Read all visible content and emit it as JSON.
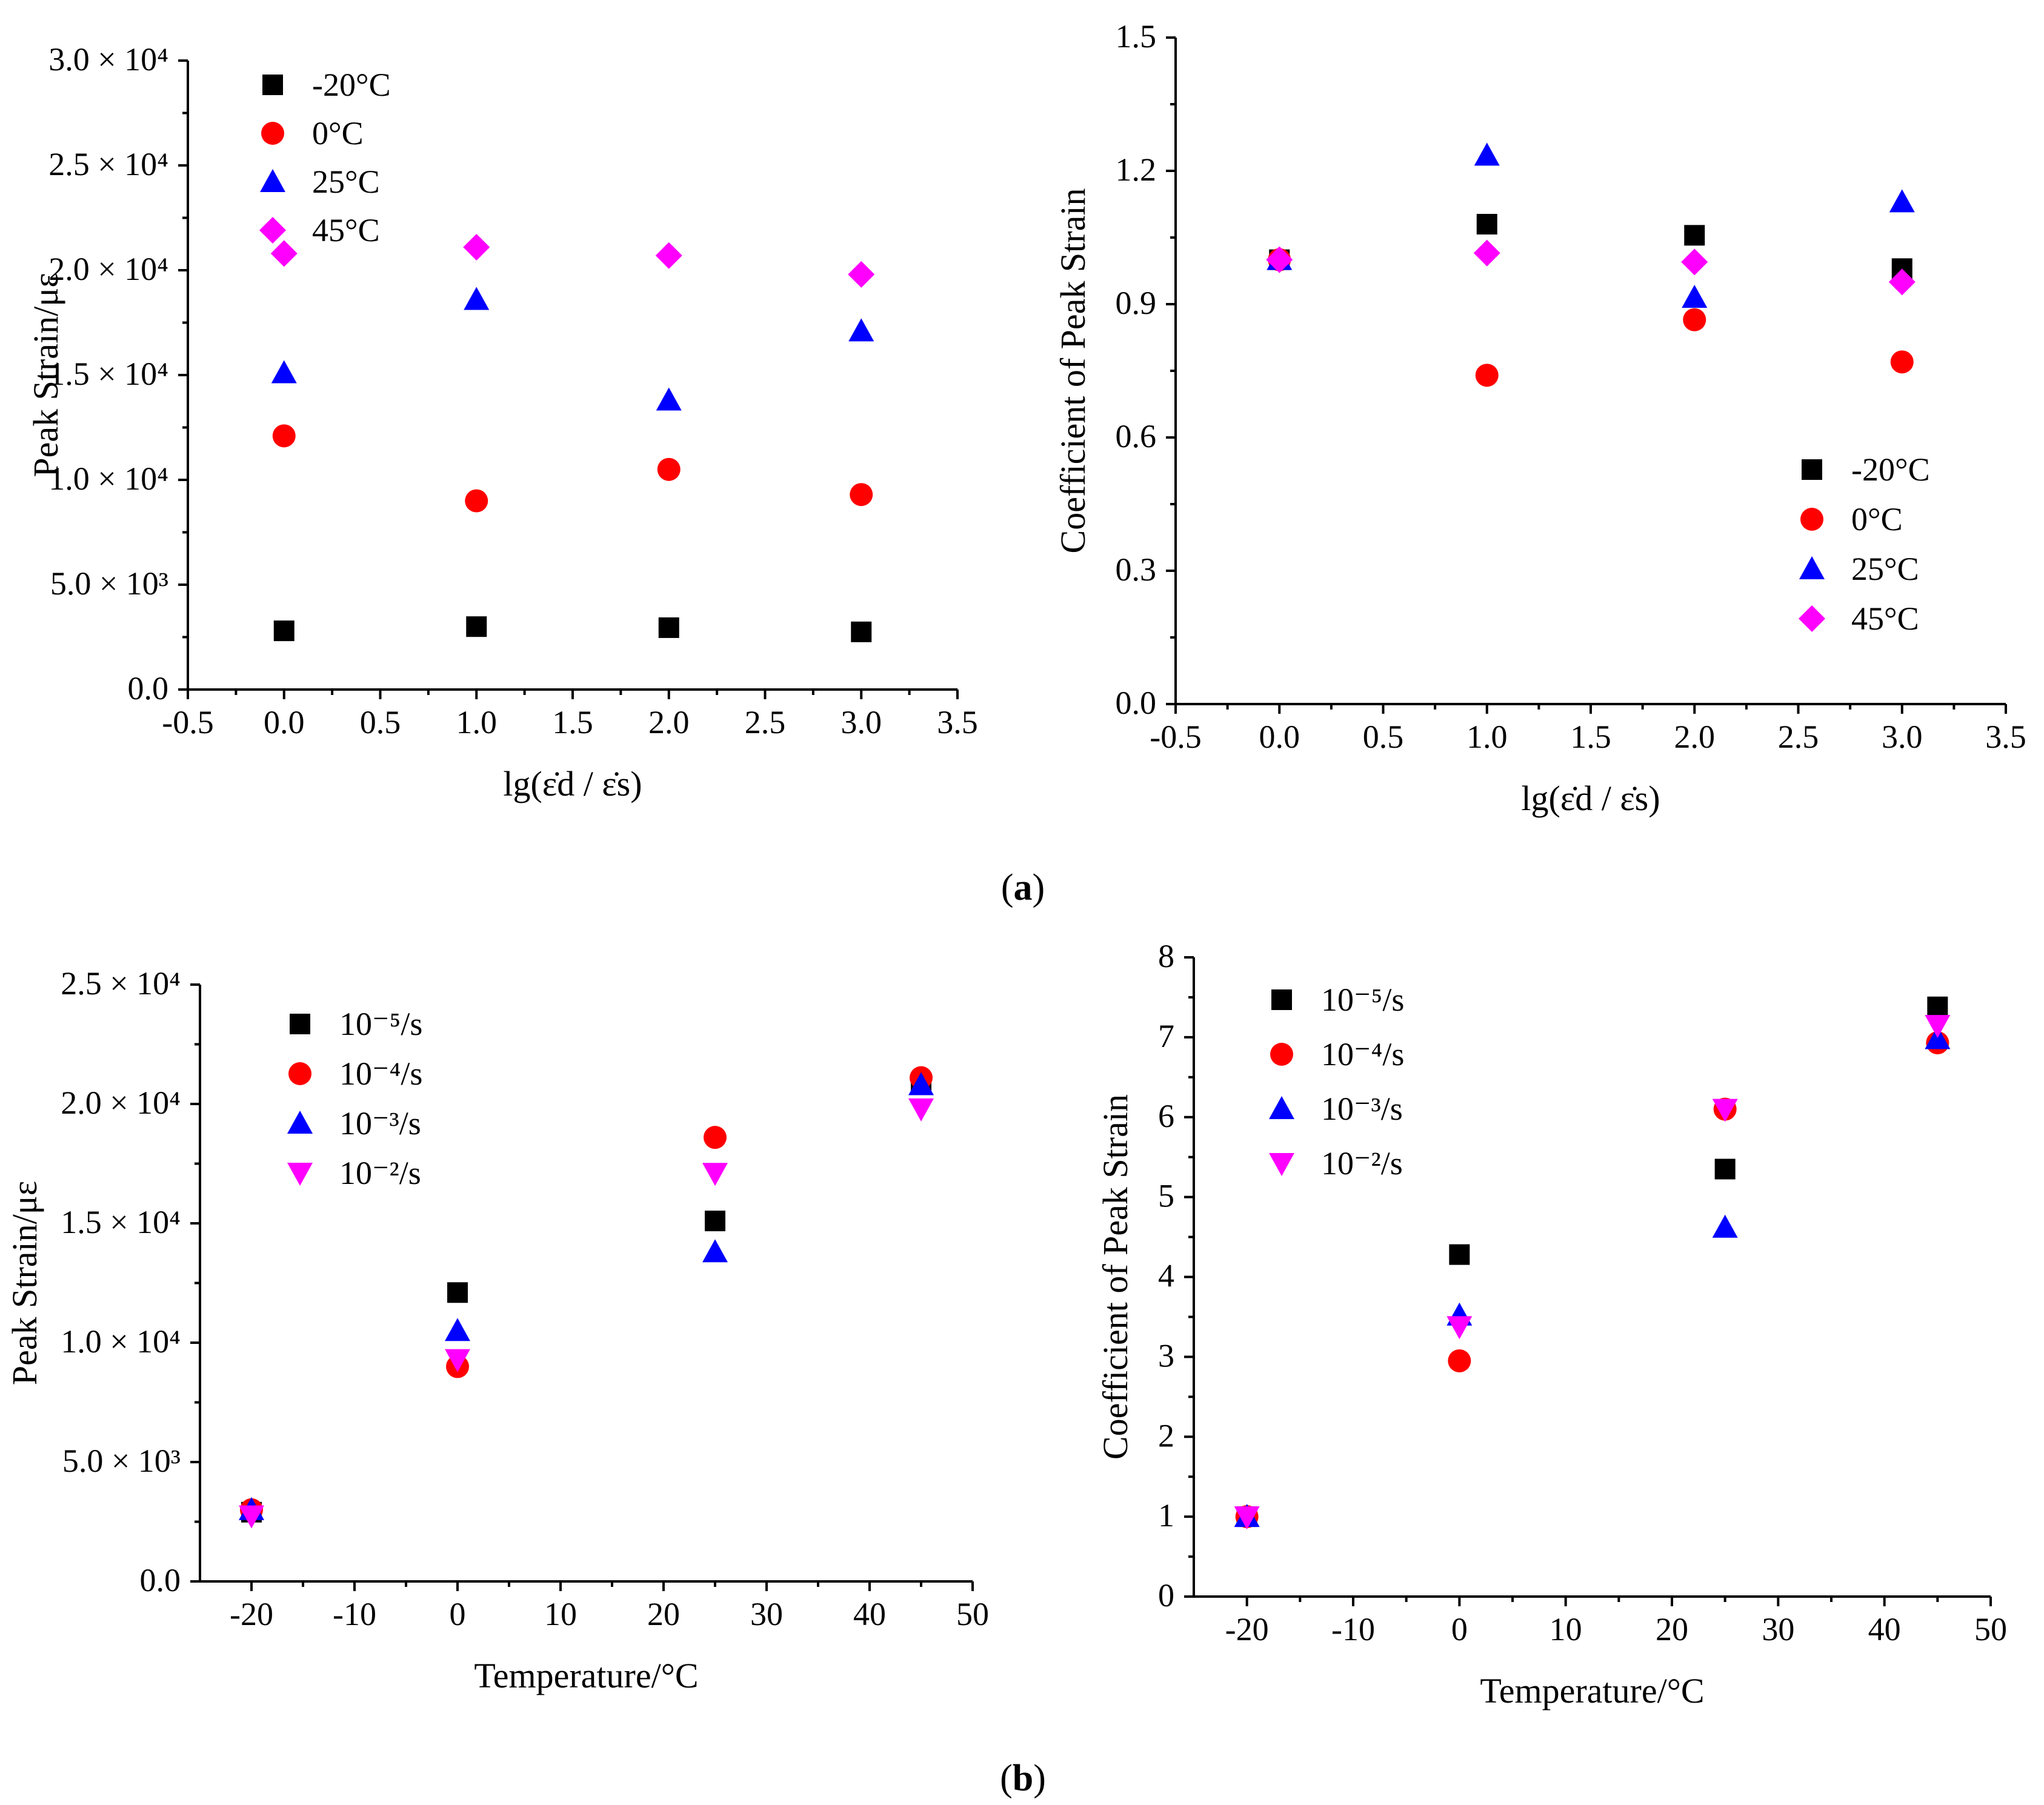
{
  "figure": {
    "panel_labels": [
      {
        "open": "(",
        "letter": "a",
        "close": ")"
      },
      {
        "open": "(",
        "letter": "b",
        "close": ")"
      }
    ]
  },
  "chart_data": [
    {
      "id": "chart-a-left",
      "type": "scatter",
      "title": "",
      "xlabel": "lg(ε̇d / ε̇s)",
      "ylabel": "Peak Strain/με",
      "xlim": [
        -0.5,
        3.5
      ],
      "ylim": [
        0,
        30000
      ],
      "xticks": [
        -0.5,
        0.0,
        0.5,
        1.0,
        1.5,
        2.0,
        2.5,
        3.0,
        3.5
      ],
      "xtick_labels": [
        "-0.5",
        "0.0",
        "0.5",
        "1.0",
        "1.5",
        "2.0",
        "2.5",
        "3.0",
        "3.5"
      ],
      "yticks": [
        0,
        5000,
        10000,
        15000,
        20000,
        25000,
        30000
      ],
      "ytick_labels": [
        "0.0",
        "5.0 × 10³",
        "1.0 × 10⁴",
        "1.5 × 10⁴",
        "2.0 × 10⁴",
        "2.5 × 10⁴",
        "3.0 × 10⁴"
      ],
      "legend_position": "top-left",
      "x": [
        0,
        1,
        2,
        3
      ],
      "series": [
        {
          "name": "-20°C",
          "marker": "square",
          "color": "#000000",
          "values": [
            2800,
            3000,
            2950,
            2750
          ]
        },
        {
          "name": "0°C",
          "marker": "circle",
          "color": "#ff0000",
          "values": [
            12100,
            9000,
            10500,
            9300
          ]
        },
        {
          "name": "25°C",
          "marker": "triangle-up",
          "color": "#0000ff",
          "values": [
            15100,
            18600,
            13800,
            17100
          ]
        },
        {
          "name": "45°C",
          "marker": "diamond",
          "color": "#ff00ff",
          "values": [
            20800,
            21100,
            20700,
            19800
          ]
        }
      ]
    },
    {
      "id": "chart-a-right",
      "type": "scatter",
      "title": "",
      "xlabel": "lg(ε̇d / ε̇s)",
      "ylabel": "Coefficient of Peak Strain",
      "xlim": [
        -0.5,
        3.5
      ],
      "ylim": [
        0,
        1.5
      ],
      "xticks": [
        -0.5,
        0.0,
        0.5,
        1.0,
        1.5,
        2.0,
        2.5,
        3.0,
        3.5
      ],
      "xtick_labels": [
        "-0.5",
        "0.0",
        "0.5",
        "1.0",
        "1.5",
        "2.0",
        "2.5",
        "3.0",
        "3.5"
      ],
      "yticks": [
        0,
        0.3,
        0.6,
        0.9,
        1.2,
        1.5
      ],
      "ytick_labels": [
        "0.0",
        "0.3",
        "0.6",
        "0.9",
        "1.2",
        "1.5"
      ],
      "legend_position": "bottom-right",
      "x": [
        0,
        1,
        2,
        3
      ],
      "series": [
        {
          "name": "-20°C",
          "marker": "square",
          "color": "#000000",
          "values": [
            1.0,
            1.08,
            1.055,
            0.98
          ]
        },
        {
          "name": "0°C",
          "marker": "circle",
          "color": "#ff0000",
          "values": [
            1.0,
            0.74,
            0.865,
            0.77
          ]
        },
        {
          "name": "25°C",
          "marker": "triangle-up",
          "color": "#0000ff",
          "values": [
            1.0,
            1.235,
            0.915,
            1.13
          ]
        },
        {
          "name": "45°C",
          "marker": "diamond",
          "color": "#ff00ff",
          "values": [
            1.0,
            1.015,
            0.995,
            0.95
          ]
        }
      ]
    },
    {
      "id": "chart-b-left",
      "type": "scatter",
      "title": "",
      "xlabel": "Temperature/°C",
      "ylabel": "Peak Strain/με",
      "xlim": [
        -25,
        50
      ],
      "ylim": [
        0,
        25000
      ],
      "xticks": [
        -20,
        -10,
        0,
        10,
        20,
        30,
        40,
        50
      ],
      "xtick_labels": [
        "-20",
        "-10",
        "0",
        "10",
        "20",
        "30",
        "40",
        "50"
      ],
      "yticks": [
        0,
        5000,
        10000,
        15000,
        20000,
        25000
      ],
      "ytick_labels": [
        "0.0",
        "5.0 × 10³",
        "1.0 × 10⁴",
        "1.5 × 10⁴",
        "2.0 × 10⁴",
        "2.5 × 10⁴"
      ],
      "legend_position": "top-left",
      "x": [
        -20,
        0,
        25,
        45
      ],
      "series": [
        {
          "name": "10⁻⁵/s",
          "marker": "square",
          "color": "#000000",
          "values": [
            2900,
            12100,
            15100,
            20800
          ]
        },
        {
          "name": "10⁻⁴/s",
          "marker": "circle",
          "color": "#ff0000",
          "values": [
            3000,
            9000,
            18600,
            21100
          ]
        },
        {
          "name": "10⁻³/s",
          "marker": "triangle-up",
          "color": "#0000ff",
          "values": [
            3000,
            10500,
            13800,
            20800
          ]
        },
        {
          "name": "10⁻²/s",
          "marker": "triangle-down",
          "color": "#ff00ff",
          "values": [
            2750,
            9300,
            17100,
            19800
          ]
        }
      ]
    },
    {
      "id": "chart-b-right",
      "type": "scatter",
      "title": "",
      "xlabel": "Temperature/°C",
      "ylabel": "Coefficient of Peak Strain",
      "xlim": [
        -25,
        50
      ],
      "ylim": [
        0,
        8
      ],
      "xticks": [
        -20,
        -10,
        0,
        10,
        20,
        30,
        40,
        50
      ],
      "xtick_labels": [
        "-20",
        "-10",
        "0",
        "10",
        "20",
        "30",
        "40",
        "50"
      ],
      "yticks": [
        0,
        1,
        2,
        3,
        4,
        5,
        6,
        7,
        8
      ],
      "ytick_labels": [
        "0",
        "1",
        "2",
        "3",
        "4",
        "5",
        "6",
        "7",
        "8"
      ],
      "legend_position": "top-left",
      "x": [
        -20,
        0,
        25,
        45
      ],
      "series": [
        {
          "name": "10⁻⁵/s",
          "marker": "square",
          "color": "#000000",
          "values": [
            1.0,
            4.28,
            5.35,
            7.38
          ]
        },
        {
          "name": "10⁻⁴/s",
          "marker": "circle",
          "color": "#ff0000",
          "values": [
            1.0,
            2.95,
            6.1,
            6.93
          ]
        },
        {
          "name": "10⁻³/s",
          "marker": "triangle-up",
          "color": "#0000ff",
          "values": [
            1.0,
            3.52,
            4.62,
            6.98
          ]
        },
        {
          "name": "10⁻²/s",
          "marker": "triangle-down",
          "color": "#ff00ff",
          "values": [
            1.0,
            3.38,
            6.1,
            7.15
          ]
        }
      ]
    }
  ]
}
